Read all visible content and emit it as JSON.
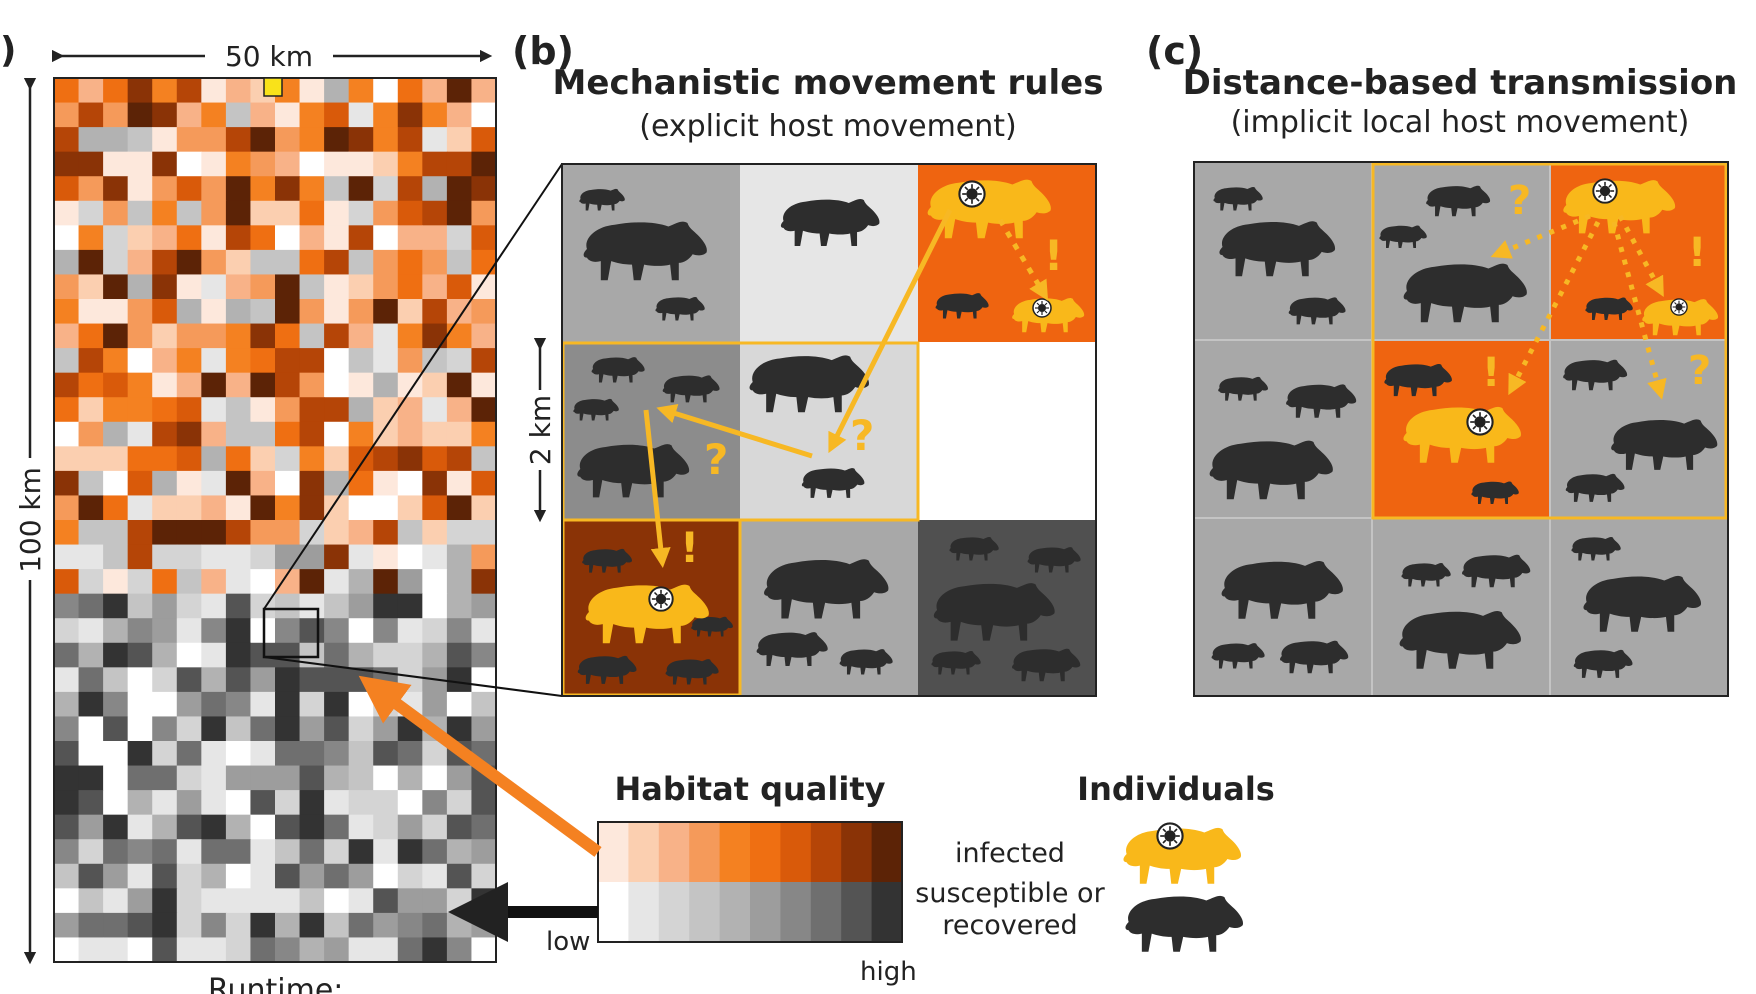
{
  "panel_a": {
    "label": ")",
    "width_label": "50 km",
    "height_label": "100 km",
    "runtime_label": "Runtime:"
  },
  "panel_b": {
    "label": "(b)",
    "title": "Mechanistic movement rules",
    "subtitle": "(explicit host movement)",
    "scale_label": "2 km"
  },
  "panel_c": {
    "label": "(c)",
    "title": "Distance-based transmission",
    "subtitle": "(implicit local host movement)"
  },
  "legend_habitat": {
    "title": "Habitat quality",
    "low": "low",
    "high": "high",
    "orange_scale": [
      "#fde8dc",
      "#fbcfb0",
      "#f8b288",
      "#f59a5a",
      "#f48121",
      "#ef6f12",
      "#d95a0a",
      "#b54507",
      "#8a3306",
      "#5c2306"
    ],
    "gray_scale": [
      "#ffffff",
      "#e6e6e6",
      "#d4d4d4",
      "#c4c4c4",
      "#b2b2b2",
      "#9d9d9d",
      "#878787",
      "#6f6f6f",
      "#545454",
      "#333333"
    ]
  },
  "legend_individuals": {
    "title": "Individuals",
    "infected": "infected",
    "susceptible": "susceptible or\nrecovered",
    "infected_color": "#f9b81a",
    "susceptible_color": "#2d2d2d"
  },
  "marks": {
    "question": "?",
    "exclaim": "!"
  },
  "colors": {
    "infection_arrow": "#f7b824",
    "orange_arrow": "#f48121",
    "cell_orange": "#ef6410",
    "cell_darkorange": "#8a3306"
  }
}
